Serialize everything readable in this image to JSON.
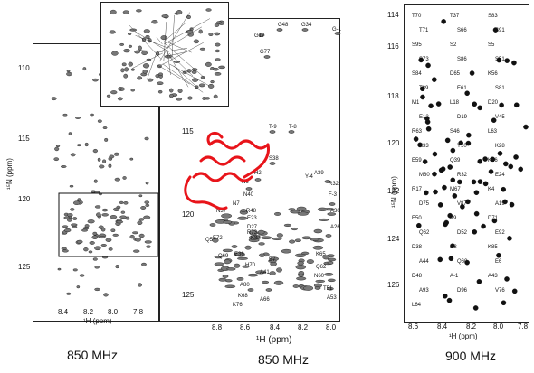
{
  "panels": {
    "left": {
      "y_ticks": [
        "110",
        "115",
        "120",
        "125"
      ],
      "x_ticks": [
        "8.4",
        "8.2",
        "8.0",
        "7.8"
      ],
      "x_title": "¹H (ppm)",
      "y_title": "¹⁵N (ppm)",
      "caption": "850 MHz"
    },
    "middle": {
      "y_ticks": [
        "115",
        "120",
        "125"
      ],
      "x_ticks": [
        "8.8",
        "8.6",
        "8.4",
        "8.2",
        "8.0"
      ],
      "x_title": "¹H  (ppm)",
      "caption": "850 MHz",
      "peak_labels": [
        "G48",
        "G34",
        "G-1",
        "G17",
        "G77",
        "T-9",
        "T-8",
        "S38",
        "H2",
        "N6",
        "N40",
        "N7",
        "N37",
        "R48",
        "E23",
        "D27",
        "R73",
        "K82",
        "E72",
        "E36",
        "H70",
        "A41",
        "A80",
        "K68",
        "A66",
        "K76",
        "Q5",
        "Q69",
        "E7",
        "Y-4",
        "A39",
        "R32",
        "F-3",
        "A30",
        "A26",
        "K65",
        "Q62",
        "N60",
        "T51",
        "A53"
      ],
      "peak_colors": {
        "ribbon": "#e8141a"
      }
    },
    "right": {
      "y_ticks": [
        "114",
        "116",
        "118",
        "120",
        "122",
        "124",
        "126"
      ],
      "x_ticks": [
        "8.6",
        "8.4",
        "8.2",
        "8.0",
        "7.8"
      ],
      "x_title": "¹H (ppm)",
      "y_title": "¹⁵N (ppm)",
      "caption": "900 MHz",
      "peak_labels": [
        "T70",
        "T37",
        "S83",
        "T71",
        "S66",
        "S91",
        "S95",
        "S2",
        "S5",
        "S73",
        "S86",
        "S51",
        "S84",
        "D65",
        "K56",
        "T89",
        "E61",
        "S81",
        "M1",
        "L18",
        "D20",
        "E12",
        "D19",
        "V45",
        "R63",
        "S46",
        "L63",
        "K33",
        "Y10",
        "K28",
        "E59",
        "Q39",
        "K26",
        "M80",
        "R32",
        "E24",
        "R17",
        "M67",
        "K4",
        "D75",
        "V87",
        "A19",
        "E50",
        "A9",
        "D71",
        "Q62",
        "D52",
        "E92",
        "D38",
        "D3",
        "K85",
        "A44",
        "Q60",
        "E6",
        "D48",
        "A-1",
        "A43",
        "A93",
        "D96",
        "V76",
        "L64"
      ]
    }
  }
}
